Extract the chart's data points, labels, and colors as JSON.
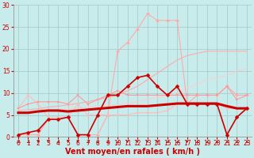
{
  "background_color": "#c8ecec",
  "grid_color": "#a0c8c8",
  "xlabel": "Vent moyen/en rafales ( km/h )",
  "xlabel_color": "#cc0000",
  "xlabel_fontsize": 7,
  "xtick_color": "#cc0000",
  "ytick_color": "#cc0000",
  "xlim": [
    -0.5,
    23.5
  ],
  "ylim": [
    0,
    30
  ],
  "yticks": [
    0,
    5,
    10,
    15,
    20,
    25,
    30
  ],
  "xticks": [
    0,
    1,
    2,
    3,
    4,
    5,
    6,
    7,
    8,
    9,
    10,
    11,
    12,
    13,
    14,
    15,
    16,
    17,
    18,
    19,
    20,
    21,
    22,
    23
  ],
  "series": [
    {
      "x": [
        0,
        1,
        2,
        3,
        4,
        5,
        6,
        7,
        8,
        9,
        10,
        11,
        12,
        13,
        14,
        15,
        16,
        17,
        18,
        19,
        20,
        21,
        22,
        23
      ],
      "y": [
        0.5,
        0.5,
        0.5,
        4.0,
        4.0,
        4.5,
        0.5,
        0.5,
        0.5,
        5.0,
        19.5,
        21.5,
        24.5,
        28.0,
        26.5,
        26.5,
        26.5,
        7.5,
        9.5,
        9.5,
        9.5,
        11.5,
        9.5,
        9.5
      ],
      "color": "#ffaaaa",
      "lw": 0.8,
      "marker": "D",
      "ms": 2.0,
      "zorder": 2
    },
    {
      "x": [
        0,
        1,
        2,
        3,
        4,
        5,
        6,
        7,
        8,
        9,
        10,
        11,
        12,
        13,
        14,
        15,
        16,
        17,
        18,
        19,
        20,
        21,
        22,
        23
      ],
      "y": [
        6.0,
        6.2,
        6.4,
        6.8,
        7.0,
        7.3,
        7.6,
        8.0,
        8.5,
        9.0,
        9.5,
        10.5,
        11.5,
        13.0,
        14.5,
        16.0,
        17.5,
        18.5,
        19.0,
        19.5,
        19.5,
        19.5,
        19.5,
        19.5
      ],
      "color": "#ffaaaa",
      "lw": 0.8,
      "marker": null,
      "ms": 0,
      "zorder": 2
    },
    {
      "x": [
        0,
        1,
        2,
        3,
        4,
        5,
        6,
        7,
        8,
        9,
        10,
        11,
        12,
        13,
        14,
        15,
        16,
        17,
        18,
        19,
        20,
        21,
        22,
        23
      ],
      "y": [
        6.5,
        9.5,
        7.5,
        4.5,
        4.5,
        4.5,
        7.5,
        5.0,
        5.0,
        5.0,
        5.0,
        5.0,
        5.5,
        5.5,
        5.5,
        6.0,
        7.5,
        7.5,
        7.5,
        7.5,
        7.5,
        6.5,
        6.5,
        6.5
      ],
      "color": "#ffbbbb",
      "lw": 0.8,
      "marker": "s",
      "ms": 1.8,
      "zorder": 2
    },
    {
      "x": [
        0,
        1,
        2,
        3,
        4,
        5,
        6,
        7,
        8,
        9,
        10,
        11,
        12,
        13,
        14,
        15,
        16,
        17,
        18,
        19,
        20,
        21,
        22,
        23
      ],
      "y": [
        5.5,
        5.6,
        5.8,
        6.0,
        6.2,
        6.4,
        6.6,
        6.8,
        7.0,
        7.2,
        7.4,
        7.6,
        8.0,
        8.5,
        9.0,
        9.5,
        10.0,
        11.0,
        12.0,
        13.0,
        13.5,
        14.0,
        15.0,
        15.5
      ],
      "color": "#ffcccc",
      "lw": 0.7,
      "marker": null,
      "ms": 0,
      "zorder": 1
    },
    {
      "x": [
        0,
        1,
        2,
        3,
        4,
        5,
        6,
        7,
        8,
        9,
        10,
        11,
        12,
        13,
        14,
        15,
        16,
        17,
        18,
        19,
        20,
        21,
        22,
        23
      ],
      "y": [
        6.5,
        7.5,
        8.0,
        8.0,
        8.0,
        7.5,
        9.5,
        7.5,
        8.5,
        9.5,
        10.5,
        9.5,
        9.5,
        9.5,
        9.5,
        9.5,
        9.5,
        9.5,
        9.5,
        9.5,
        9.5,
        11.5,
        8.5,
        9.5
      ],
      "color": "#ff9999",
      "lw": 0.8,
      "marker": "s",
      "ms": 1.8,
      "zorder": 2
    },
    {
      "x": [
        0,
        1,
        2,
        3,
        4,
        5,
        6,
        7,
        8,
        9,
        10,
        11,
        12,
        13,
        14,
        15,
        16,
        17,
        18,
        19,
        20,
        21,
        22,
        23
      ],
      "y": [
        5.5,
        5.5,
        5.8,
        6.0,
        6.0,
        5.8,
        6.0,
        6.2,
        6.4,
        6.6,
        6.8,
        7.0,
        7.0,
        7.0,
        7.2,
        7.4,
        7.6,
        7.6,
        7.6,
        7.6,
        7.6,
        7.0,
        6.5,
        6.5
      ],
      "color": "#cc0000",
      "lw": 2.2,
      "marker": null,
      "ms": 0,
      "zorder": 4
    },
    {
      "x": [
        0,
        1,
        2,
        3,
        4,
        5,
        6,
        7,
        8,
        9,
        10,
        11,
        12,
        13,
        14,
        15,
        16,
        17,
        18,
        19,
        20,
        21,
        22,
        23
      ],
      "y": [
        0.5,
        1.0,
        1.5,
        4.0,
        4.0,
        4.5,
        0.5,
        0.5,
        5.0,
        9.5,
        9.5,
        11.5,
        13.5,
        14.0,
        11.5,
        9.5,
        11.5,
        7.5,
        7.5,
        7.5,
        7.5,
        0.5,
        4.5,
        6.5
      ],
      "color": "#cc0000",
      "lw": 1.2,
      "marker": "D",
      "ms": 2.5,
      "zorder": 5
    }
  ],
  "arrow_angles": [
    225,
    225,
    270,
    270,
    225,
    270,
    270,
    225,
    180,
    225,
    225,
    270,
    270,
    270,
    270,
    225,
    225,
    270,
    225,
    225,
    225,
    225,
    225,
    225
  ]
}
